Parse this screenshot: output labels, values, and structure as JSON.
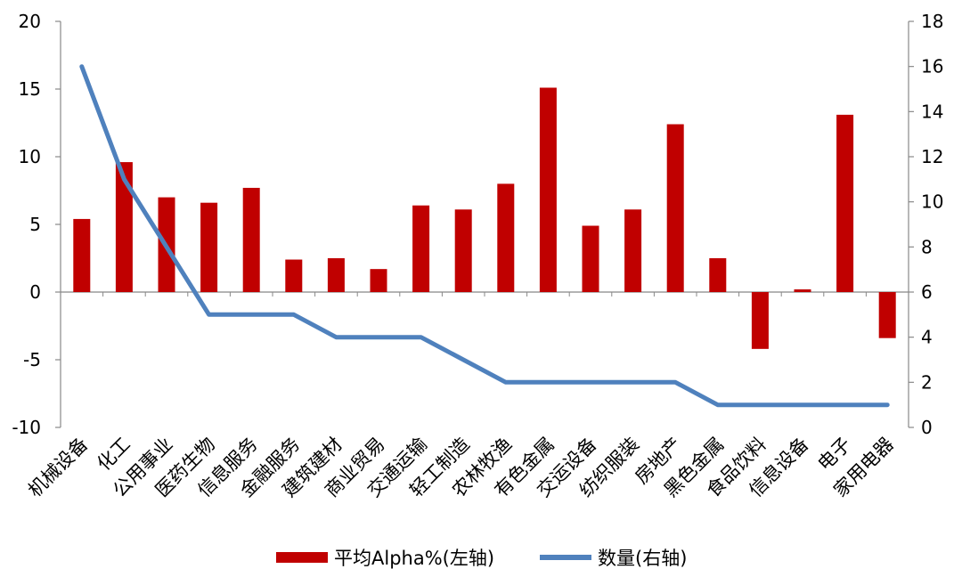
{
  "chart_data": {
    "type": "bar",
    "categories": [
      "机械设备",
      "化工",
      "公用事业",
      "医药生物",
      "信息服务",
      "金融服务",
      "建筑建材",
      "商业贸易",
      "交通运输",
      "轻工制造",
      "农林牧渔",
      "有色金属",
      "交运设备",
      "纺织服装",
      "房地产",
      "黑色金属",
      "食品饮料",
      "信息设备",
      "电子",
      "家用电器"
    ],
    "series": [
      {
        "name": "平均Alpha%(左轴)",
        "type": "bar",
        "axis": "left",
        "color": "#C00000",
        "values": [
          5.4,
          9.6,
          7.0,
          6.6,
          7.7,
          2.4,
          2.5,
          1.7,
          6.4,
          6.1,
          8.0,
          15.1,
          4.9,
          6.1,
          12.4,
          2.5,
          -4.2,
          0.2,
          13.1,
          -3.4
        ]
      },
      {
        "name": "数量(右轴)",
        "type": "line",
        "axis": "right",
        "color": "#4F81BD",
        "values": [
          16,
          11,
          8,
          5,
          5,
          5,
          4,
          4,
          4,
          3,
          2,
          2,
          2,
          2,
          2,
          1,
          1,
          1,
          1,
          1
        ]
      }
    ],
    "left_axis": {
      "min": -10,
      "max": 20,
      "ticks": [
        "20",
        "15",
        "10",
        "5",
        "0",
        "-5",
        "-10"
      ]
    },
    "right_axis": {
      "min": 0,
      "max": 18,
      "ticks": [
        "18",
        "16",
        "14",
        "12",
        "10",
        "8",
        "6",
        "4",
        "2",
        "0"
      ]
    },
    "legend_position": "bottom",
    "grid": false
  }
}
